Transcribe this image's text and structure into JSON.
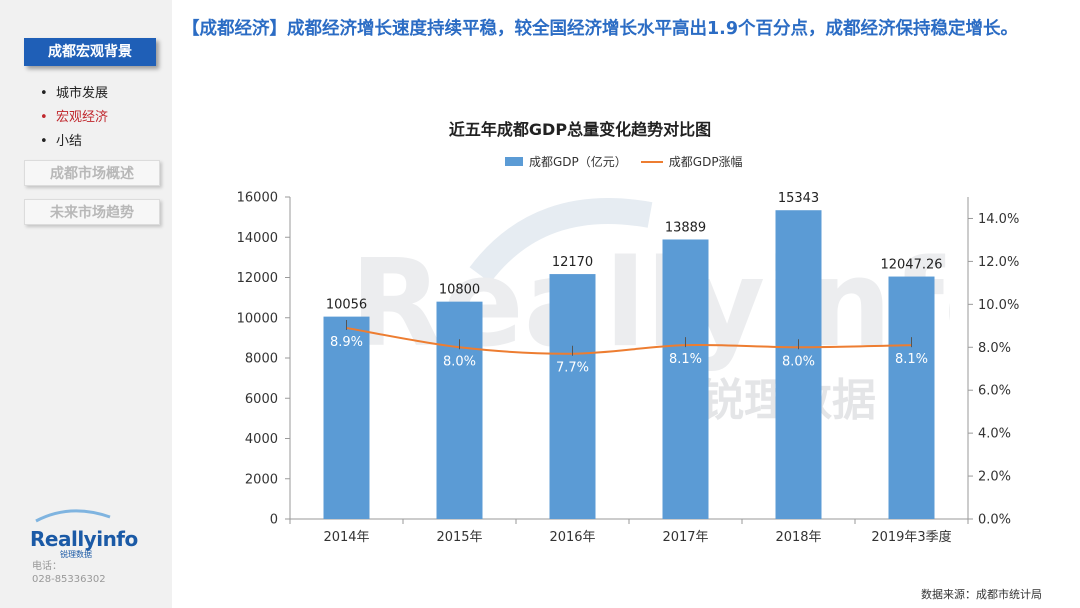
{
  "sidebar": {
    "active_section": "成都宏观背景",
    "items": [
      {
        "label": "城市发展",
        "active": false
      },
      {
        "label": "宏观经济",
        "active": true
      },
      {
        "label": "小结",
        "active": false
      }
    ],
    "other_sections": [
      "成都市场概述",
      "未来市场趋势"
    ],
    "logo_text": "Reallyinfo",
    "logo_subtext": "锐理数据",
    "contact_label": "电话：",
    "contact_phone": "028-85336302"
  },
  "header": {
    "headline": "【成都经济】成都经济增长速度持续平稳，较全国经济增长水平高出1.9个百分点，成都经济保持稳定增长。"
  },
  "watermark": {
    "text": "Reallyinfo",
    "subtext": "锐理数据"
  },
  "source_note": "数据来源：成都市统计局",
  "colors": {
    "bar": "#5b9bd5",
    "line": "#ed7d31",
    "headline": "#2b6cc4",
    "sidebar_active": "#1f5fb7"
  },
  "chart_data": {
    "type": "bar",
    "title": "近五年成都GDP总量变化趋势对比图",
    "categories": [
      "2014年",
      "2015年",
      "2016年",
      "2017年",
      "2018年",
      "2019年3季度"
    ],
    "series": [
      {
        "name": "成都GDP（亿元）",
        "type": "bar",
        "axis": "left",
        "values": [
          10056,
          10800,
          12170,
          13889,
          15343,
          12047.26
        ],
        "labels": [
          "10056",
          "10800",
          "12170",
          "13889",
          "15343",
          "12047.26"
        ]
      },
      {
        "name": "成都GDP涨幅",
        "type": "line",
        "axis": "right",
        "values": [
          8.9,
          8.0,
          7.7,
          8.1,
          8.0,
          8.1
        ],
        "labels": [
          "8.9%",
          "8.0%",
          "7.7%",
          "8.1%",
          "8.0%",
          "8.1%"
        ]
      }
    ],
    "left_axis": {
      "min": 0,
      "max": 16000,
      "step": 2000,
      "ticks": [
        "0",
        "2000",
        "4000",
        "6000",
        "8000",
        "10000",
        "12000",
        "14000",
        "16000"
      ]
    },
    "right_axis": {
      "min": 0,
      "max": 15,
      "step": 2,
      "ticks": [
        "0.0%",
        "2.0%",
        "4.0%",
        "6.0%",
        "8.0%",
        "10.0%",
        "12.0%",
        "14.0%"
      ]
    },
    "grid": false,
    "legend_position": "top"
  }
}
